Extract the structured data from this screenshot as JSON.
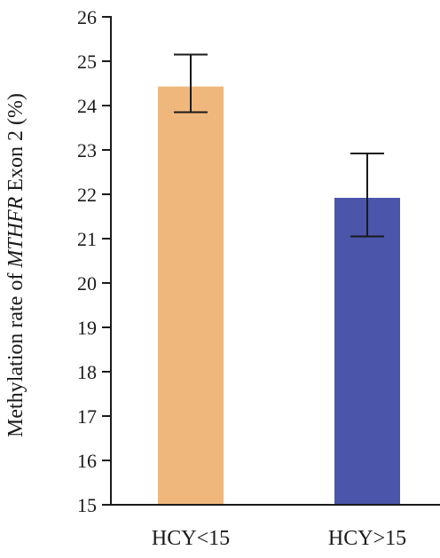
{
  "chart_data": {
    "type": "bar",
    "categories": [
      "HCY<15",
      "HCY>15"
    ],
    "values": [
      24.43,
      21.92
    ],
    "error_low": [
      23.85,
      21.05
    ],
    "error_high": [
      25.15,
      22.92
    ],
    "colors": [
      "#f0b77c",
      "#4b55aa"
    ],
    "ylabel_parts": [
      "Methylation rate of ",
      "MTHFR",
      " Exon 2 (%)"
    ],
    "xlabel": "",
    "ylim": [
      15,
      26
    ],
    "yticks": [
      15,
      16,
      17,
      18,
      19,
      20,
      21,
      22,
      23,
      24,
      25,
      26
    ],
    "grid": false
  }
}
